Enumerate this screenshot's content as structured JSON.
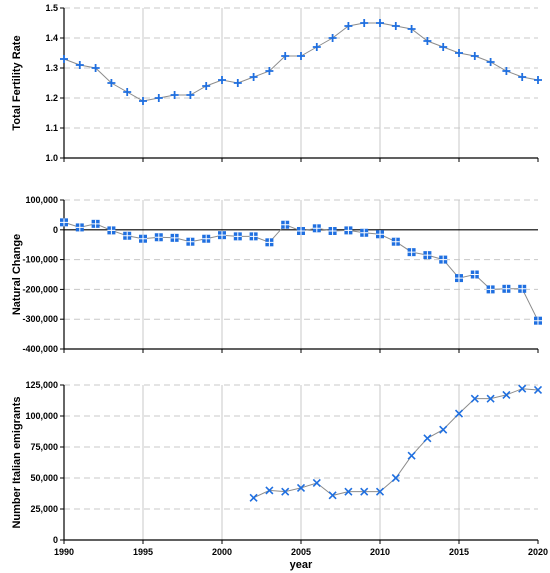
{
  "colors": {
    "marker": "#1f6fe0",
    "line": "#8c8c8c",
    "grid": "#c8c8c8",
    "negative_tick": "#d00000",
    "axis": "#000000"
  },
  "chart_data": [
    {
      "type": "line",
      "ylabel": "Total Fertility Rate",
      "xlim": [
        1990,
        2020
      ],
      "ylim": [
        1.0,
        1.5
      ],
      "yticks": [
        1.0,
        1.1,
        1.2,
        1.3,
        1.4,
        1.5
      ],
      "ytick_labels": [
        "1.0",
        "1.1",
        "1.2",
        "1.3",
        "1.4",
        "1.5"
      ],
      "marker": "plus",
      "grid": "horizontal dashed, vertical solid",
      "x": [
        1990,
        1991,
        1992,
        1993,
        1994,
        1995,
        1996,
        1997,
        1998,
        1999,
        2000,
        2001,
        2002,
        2003,
        2004,
        2005,
        2006,
        2007,
        2008,
        2009,
        2010,
        2011,
        2012,
        2013,
        2014,
        2015,
        2016,
        2017,
        2018,
        2019,
        2020
      ],
      "values": [
        1.33,
        1.31,
        1.3,
        1.25,
        1.22,
        1.19,
        1.2,
        1.21,
        1.21,
        1.24,
        1.26,
        1.25,
        1.27,
        1.29,
        1.34,
        1.34,
        1.37,
        1.4,
        1.44,
        1.45,
        1.45,
        1.44,
        1.43,
        1.39,
        1.37,
        1.35,
        1.34,
        1.32,
        1.29,
        1.27,
        1.26
      ]
    },
    {
      "type": "line",
      "ylabel": "Natural Change",
      "xlim": [
        1990,
        2020
      ],
      "ylim": [
        -400000,
        100000
      ],
      "yticks": [
        -400000,
        -300000,
        -200000,
        -100000,
        0,
        100000
      ],
      "ytick_labels": [
        "-400,000",
        "-300,000",
        "-200,000",
        "-100,000",
        "0",
        "100,000"
      ],
      "marker": "square",
      "grid": "horizontal dashed, vertical solid",
      "x": [
        1990,
        1991,
        1992,
        1993,
        1994,
        1995,
        1996,
        1997,
        1998,
        1999,
        2000,
        2001,
        2002,
        2003,
        2004,
        2005,
        2006,
        2007,
        2008,
        2009,
        2010,
        2011,
        2012,
        2013,
        2014,
        2015,
        2016,
        2017,
        2018,
        2019,
        2020
      ],
      "values": [
        25000,
        8000,
        20000,
        -2000,
        -20000,
        -30000,
        -25000,
        -27000,
        -40000,
        -30000,
        -18000,
        -22000,
        -22000,
        -42000,
        17000,
        -4000,
        5000,
        -4000,
        -2000,
        -10000,
        -15000,
        -40000,
        -75000,
        -85000,
        -100000,
        -162000,
        -150000,
        -200000,
        -198000,
        -198000,
        -305000
      ]
    },
    {
      "type": "line",
      "ylabel": "Number Italian emigrants",
      "xlabel": "year",
      "xlim": [
        1990,
        2020
      ],
      "ylim": [
        0,
        125000
      ],
      "yticks": [
        0,
        25000,
        50000,
        75000,
        100000,
        125000
      ],
      "ytick_labels": [
        "0",
        "25,000",
        "50,000",
        "75,000",
        "100,000",
        "125,000"
      ],
      "xticks": [
        1990,
        1995,
        2000,
        2005,
        2010,
        2015,
        2020
      ],
      "xtick_labels": [
        "1990",
        "1995",
        "2000",
        "2005",
        "2010",
        "2015",
        "2020"
      ],
      "marker": "cross",
      "grid": "horizontal dashed, vertical solid",
      "x": [
        2002,
        2003,
        2004,
        2005,
        2006,
        2007,
        2008,
        2009,
        2010,
        2011,
        2012,
        2013,
        2014,
        2015,
        2016,
        2017,
        2018,
        2019,
        2020
      ],
      "values": [
        34000,
        40000,
        39000,
        42000,
        46000,
        36000,
        39000,
        39000,
        39000,
        50000,
        68000,
        82000,
        89000,
        102000,
        114000,
        114000,
        117000,
        122000,
        121000
      ]
    }
  ]
}
